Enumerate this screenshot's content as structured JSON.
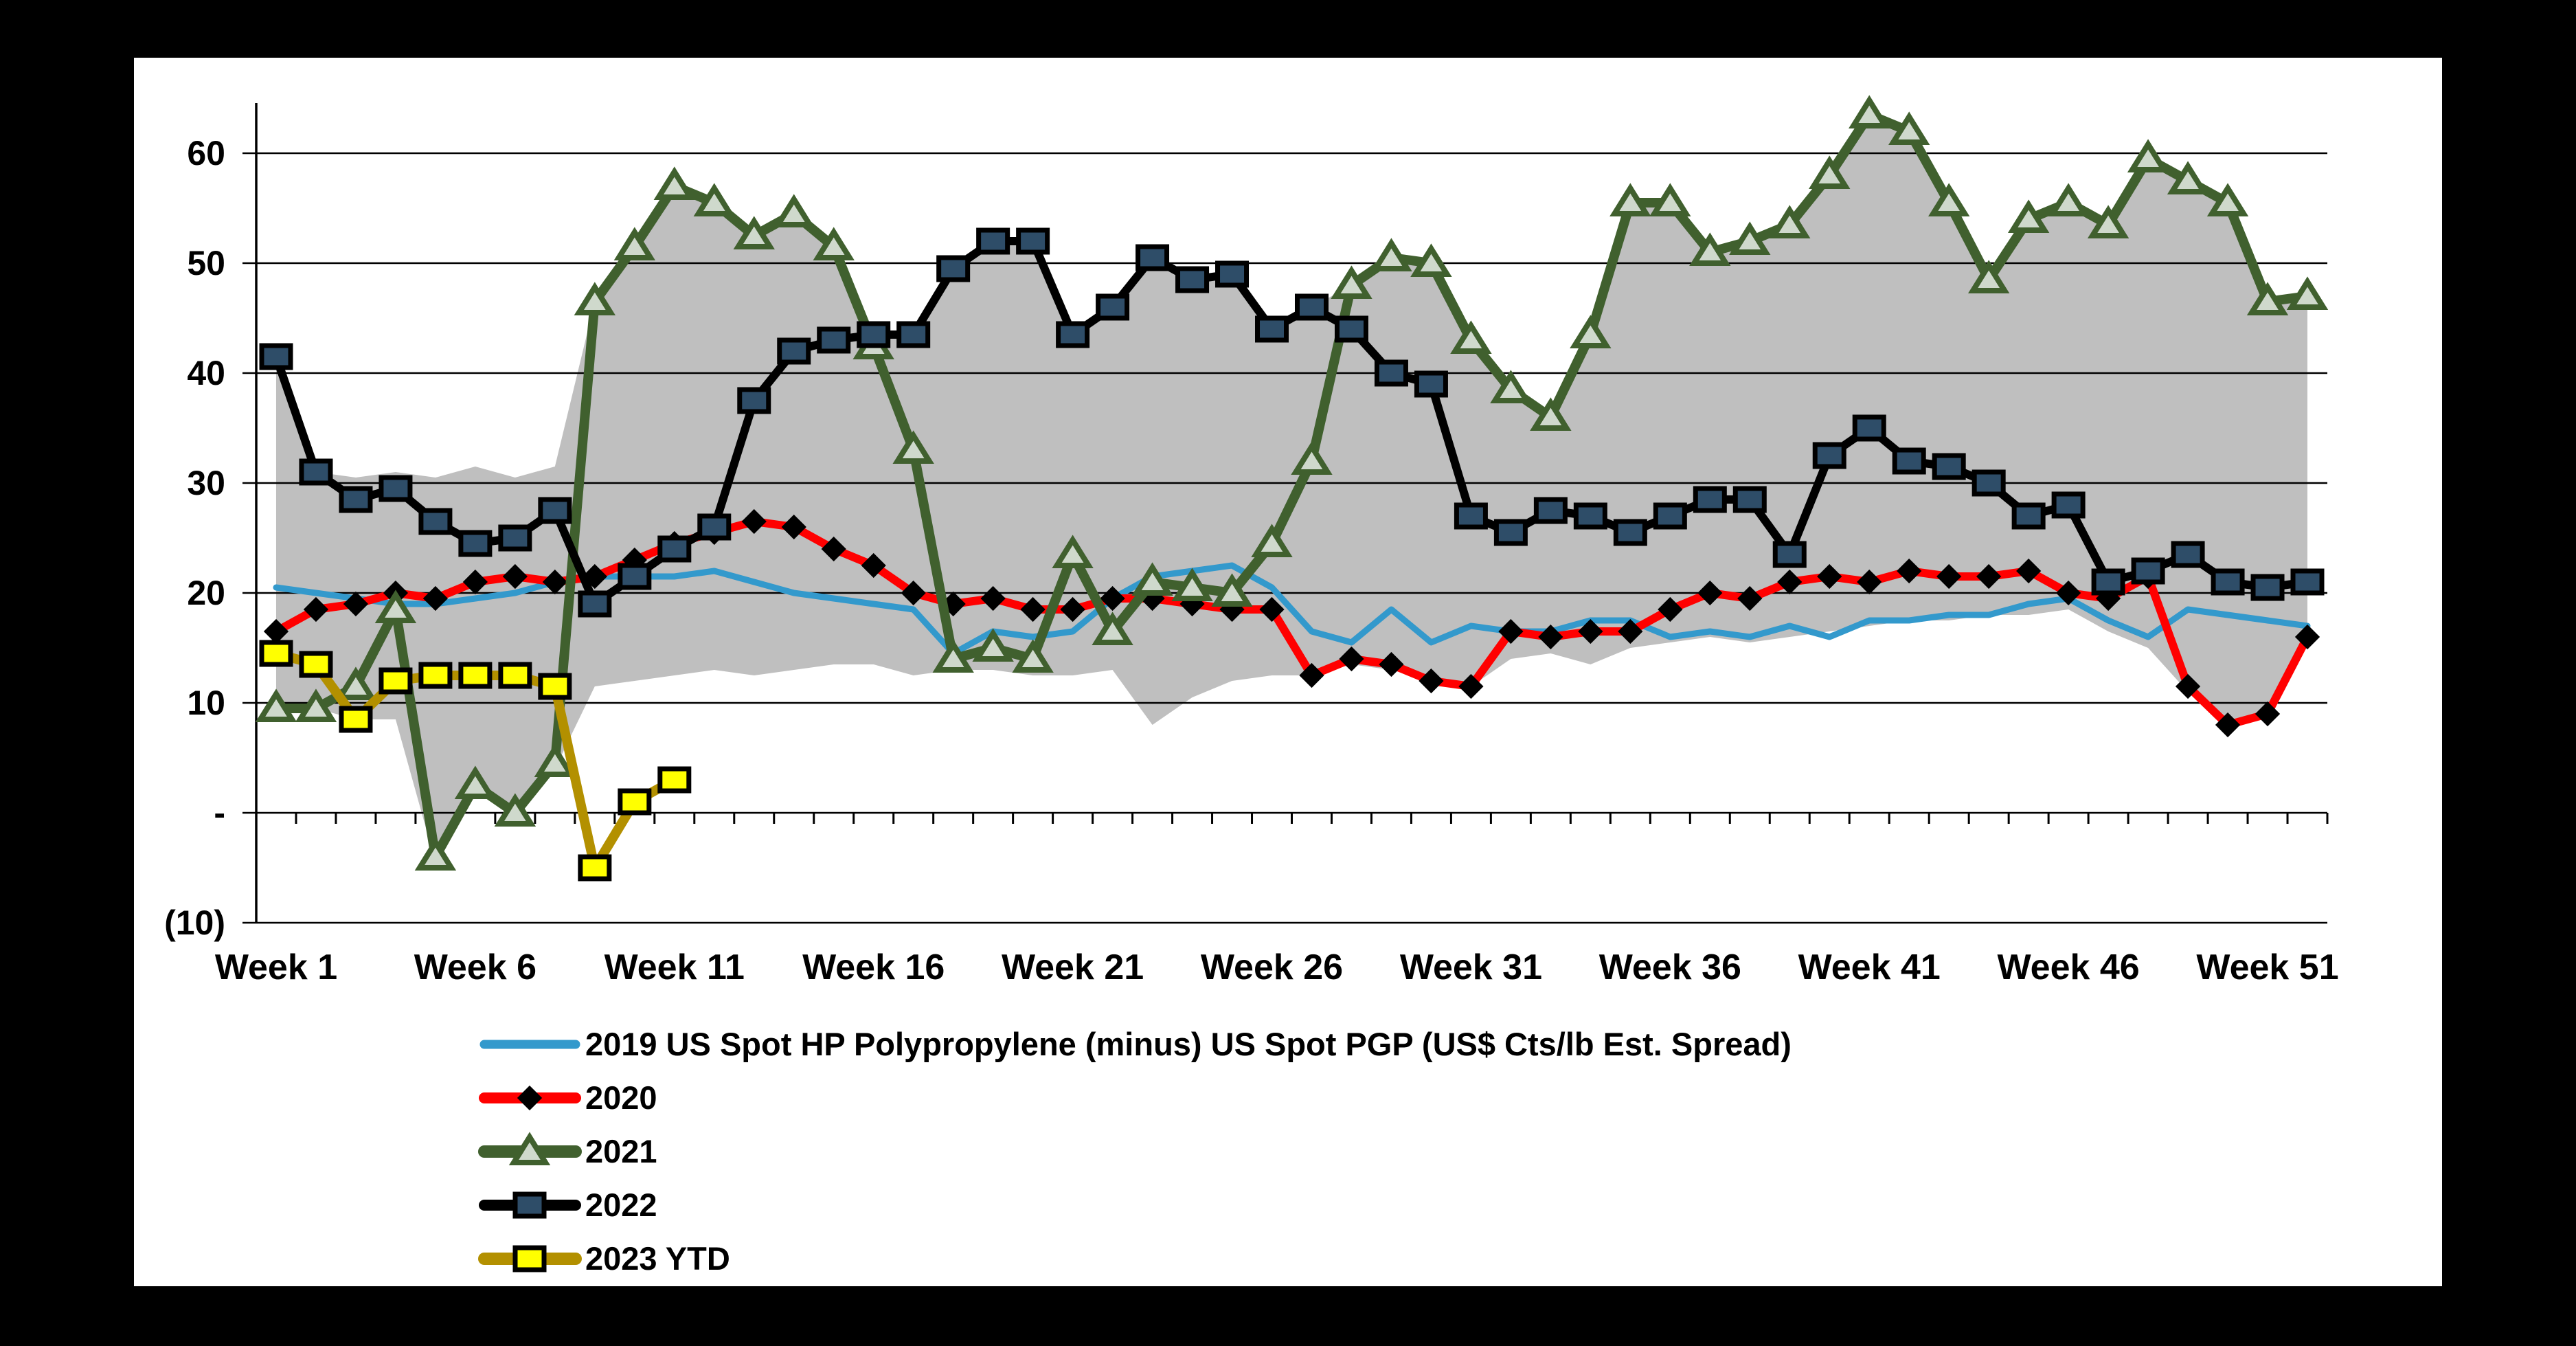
{
  "chart_data": {
    "type": "line",
    "title": "",
    "x_axis": {
      "categories": [
        1,
        2,
        3,
        4,
        5,
        6,
        7,
        8,
        9,
        10,
        11,
        12,
        13,
        14,
        15,
        16,
        17,
        18,
        19,
        20,
        21,
        22,
        23,
        24,
        25,
        26,
        27,
        28,
        29,
        30,
        31,
        32,
        33,
        34,
        35,
        36,
        37,
        38,
        39,
        40,
        41,
        42,
        43,
        44,
        45,
        46,
        47,
        48,
        49,
        50,
        51,
        52
      ],
      "tick_weeks": [
        1,
        6,
        11,
        16,
        21,
        26,
        31,
        36,
        41,
        46,
        51
      ],
      "tick_labels": [
        "Week 1",
        "Week 6",
        "Week 11",
        "Week 16",
        "Week 21",
        "Week 26",
        "Week 31",
        "Week 36",
        "Week 41",
        "Week 46",
        "Week 51"
      ]
    },
    "y_axis": {
      "range": [
        -10,
        65
      ],
      "grid": true,
      "ticks": [
        {
          "value": 60,
          "label": "60"
        },
        {
          "value": 50,
          "label": "50"
        },
        {
          "value": 40,
          "label": "40"
        },
        {
          "value": 30,
          "label": "30"
        },
        {
          "value": 20,
          "label": "20"
        },
        {
          "value": 10,
          "label": "10"
        },
        {
          "value": 0,
          "label": "-"
        },
        {
          "value": -10,
          "label": "(10)"
        }
      ]
    },
    "band": {
      "name": "min-max-range",
      "color": "#BFBFBF",
      "top": [
        41.5,
        31,
        30.5,
        31,
        30.5,
        31.5,
        30.5,
        31.5,
        46.5,
        51.5,
        57,
        55.5,
        52.5,
        54.5,
        51.5,
        43.5,
        43.5,
        49.5,
        52,
        52,
        43.5,
        46,
        50.5,
        48.5,
        49,
        44,
        46,
        48,
        50.5,
        50,
        43,
        38.5,
        36,
        43.5,
        55.5,
        55.5,
        51,
        52,
        53.5,
        58,
        63.5,
        62,
        55.5,
        48.5,
        54,
        55.5,
        53.5,
        59.5,
        57.5,
        55.5,
        46.5,
        47
      ],
      "bottom": [
        10,
        9.5,
        8.5,
        8.5,
        -4.5,
        2,
        -0.5,
        4,
        11.5,
        12,
        12.5,
        13,
        12.5,
        13,
        13.5,
        13.5,
        12.5,
        13,
        13,
        12.5,
        12.5,
        13,
        8,
        10.5,
        12,
        12.5,
        12.5,
        13.5,
        13,
        12,
        11.5,
        14,
        14.5,
        13.5,
        15,
        15.5,
        16,
        15.5,
        16,
        16.5,
        17,
        17.5,
        17.5,
        18,
        18,
        18.5,
        16.5,
        15,
        11,
        8,
        9,
        15.5
      ]
    },
    "series": [
      {
        "name": "2019",
        "legend_label": "2019 US Spot HP Polypropylene (minus) US Spot PGP (US$ Cts/lb Est. Spread)",
        "color": "#3399CC",
        "line_width": 9,
        "marker": "none",
        "values": [
          20.5,
          20,
          19.5,
          19,
          19,
          19.5,
          20,
          21,
          21.5,
          21.5,
          21.5,
          22,
          21,
          20,
          19.5,
          19,
          18.5,
          14.5,
          16.5,
          16,
          16.5,
          19.5,
          21.5,
          22,
          22.5,
          20.5,
          16.5,
          15.5,
          18.5,
          15.5,
          17,
          16.5,
          16.5,
          17.5,
          17.5,
          16,
          16.5,
          16,
          17,
          16,
          17.5,
          17.5,
          18,
          18,
          19,
          19.5,
          17.5,
          16,
          18.5,
          18,
          17.5,
          17
        ]
      },
      {
        "name": "2020",
        "legend_label": "2020",
        "color": "#FF0000",
        "line_width": 12,
        "marker": "diamond",
        "marker_fill": "#000000",
        "marker_stroke": "#000000",
        "values": [
          16.5,
          18.5,
          19,
          20,
          19.5,
          21,
          21.5,
          21,
          21.5,
          23,
          24.5,
          25.5,
          26.5,
          26,
          24,
          22.5,
          20,
          19,
          19.5,
          18.5,
          18.5,
          19.5,
          19.5,
          19,
          18.5,
          18.5,
          12.5,
          14,
          13.5,
          12,
          11.5,
          16.5,
          16,
          16.5,
          16.5,
          18.5,
          20,
          19.5,
          21,
          21.5,
          21,
          22,
          21.5,
          21.5,
          22,
          20,
          19.5,
          21.5,
          11.5,
          8,
          9,
          16
        ]
      },
      {
        "name": "2021",
        "legend_label": "2021",
        "color": "#40602E",
        "line_width": 14,
        "marker": "triangle",
        "marker_fill": "#CFD9CC",
        "marker_stroke": "#40602E",
        "values": [
          9.5,
          9.5,
          11.5,
          18.5,
          -4,
          2.5,
          0,
          4.5,
          46.5,
          51.5,
          57,
          55.5,
          52.5,
          54.5,
          51.5,
          42.5,
          33,
          14,
          15,
          14,
          23.5,
          16.5,
          21,
          20.5,
          20,
          24.5,
          32,
          48,
          50.5,
          50,
          43,
          38.5,
          36,
          43.5,
          55.5,
          55.5,
          51,
          52,
          53.5,
          58,
          63.5,
          62,
          55.5,
          48.5,
          54,
          55.5,
          53.5,
          59.5,
          57.5,
          55.5,
          46.5,
          47
        ]
      },
      {
        "name": "2022",
        "legend_label": "2022",
        "color": "#000000",
        "line_width": 12,
        "marker": "square",
        "marker_fill": "#2E4D68",
        "marker_stroke": "#000000",
        "values": [
          41.5,
          31,
          28.5,
          29.5,
          26.5,
          24.5,
          25,
          27.5,
          19,
          21.5,
          24,
          26,
          37.5,
          42,
          43,
          43.5,
          43.5,
          49.5,
          52,
          52,
          43.5,
          46,
          50.5,
          48.5,
          49,
          44,
          46,
          44,
          40,
          39,
          27,
          25.5,
          27.5,
          27,
          25.5,
          27,
          28.5,
          28.5,
          23.5,
          32.5,
          35,
          32,
          31.5,
          30,
          27,
          28,
          21,
          22,
          23.5,
          21,
          20.5,
          21
        ]
      },
      {
        "name": "2023 YTD",
        "legend_label": "2023 YTD",
        "color": "#B39000",
        "line_width": 14,
        "marker": "square",
        "marker_fill": "#FFFF00",
        "marker_stroke": "#000000",
        "values": [
          14.5,
          13.5,
          8.5,
          12,
          12.5,
          12.5,
          12.5,
          11.5,
          -5,
          1,
          3,
          null,
          null,
          null,
          null,
          null,
          null,
          null,
          null,
          null,
          null,
          null,
          null,
          null,
          null,
          null,
          null,
          null,
          null,
          null,
          null,
          null,
          null,
          null,
          null,
          null,
          null,
          null,
          null,
          null,
          null,
          null,
          null,
          null,
          null,
          null,
          null,
          null,
          null,
          null,
          null,
          null
        ]
      }
    ],
    "legend": {
      "position": "bottom-left",
      "order": [
        "2019",
        "2020",
        "2021",
        "2022",
        "2023 YTD"
      ]
    },
    "colors": {
      "background": "#000000",
      "slide": "#FFFFFF",
      "gridline": "#000000"
    }
  }
}
